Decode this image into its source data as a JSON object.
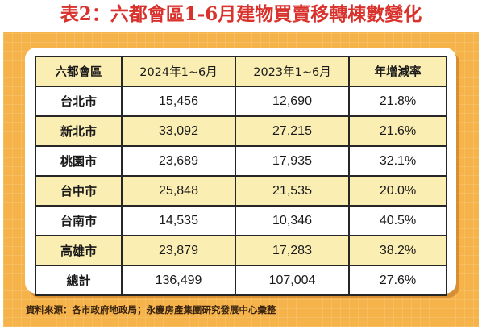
{
  "title": "表2：六都會區1-6月建物買賣移轉棟數變化",
  "table": {
    "headers": [
      "六都會區",
      "2024年1~6月",
      "2023年1~6月",
      "年增減率"
    ],
    "rows": [
      {
        "region": "台北市",
        "y2024": "15,456",
        "y2023": "12,690",
        "change": "21.8%"
      },
      {
        "region": "新北市",
        "y2024": "33,092",
        "y2023": "27,215",
        "change": "21.6%"
      },
      {
        "region": "桃園市",
        "y2024": "23,689",
        "y2023": "17,935",
        "change": "32.1%"
      },
      {
        "region": "台中市",
        "y2024": "25,848",
        "y2023": "21,535",
        "change": "20.0%"
      },
      {
        "region": "台南市",
        "y2024": "14,535",
        "y2023": "10,346",
        "change": "40.5%"
      },
      {
        "region": "高雄市",
        "y2024": "23,879",
        "y2023": "17,283",
        "change": "38.2%"
      },
      {
        "region": "總計",
        "y2024": "136,499",
        "y2023": "107,004",
        "change": "27.6%"
      }
    ]
  },
  "source": "資料來源：各市政府地政局；永慶房產集團研究發展中心彙整",
  "colors": {
    "title": "#d9322d",
    "panel": "#f5b349",
    "row_shade": "#fbeeb3",
    "border": "#262626"
  }
}
